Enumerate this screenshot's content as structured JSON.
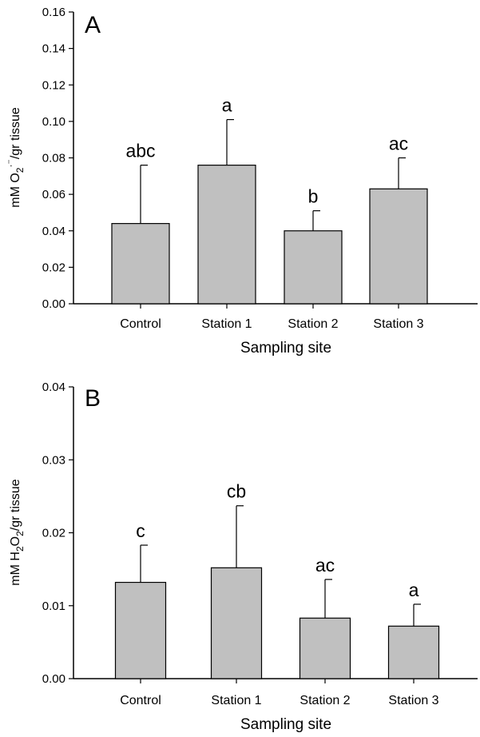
{
  "chart_data": [
    {
      "type": "bar",
      "panel_label": "A",
      "categories": [
        "Control",
        "Station 1",
        "Station 2",
        "Station 3"
      ],
      "values": [
        0.044,
        0.076,
        0.04,
        0.063
      ],
      "errors": [
        0.032,
        0.025,
        0.011,
        0.017
      ],
      "significance": [
        "abc",
        "a",
        "b",
        "ac"
      ],
      "ylabel": "mM O2·⁻/gr tissue",
      "xlabel": "Sampling site",
      "ylim": [
        0,
        0.16
      ],
      "yticks": [
        "0.00",
        "0.02",
        "0.04",
        "0.06",
        "0.08",
        "0.10",
        "0.12",
        "0.14",
        "0.16"
      ],
      "bar_color": "#c0c0c0",
      "grid": false
    },
    {
      "type": "bar",
      "panel_label": "B",
      "categories": [
        "Control",
        "Station 1",
        "Station 2",
        "Station 3"
      ],
      "values": [
        0.0132,
        0.0152,
        0.0083,
        0.0072
      ],
      "errors": [
        0.0051,
        0.0085,
        0.0053,
        0.003
      ],
      "significance": [
        "c",
        "cb",
        "ac",
        "a"
      ],
      "ylabel": "mM H2O2/gr tissue",
      "xlabel": "Sampling site",
      "ylim": [
        0,
        0.04
      ],
      "yticks": [
        "0.00",
        "0.01",
        "0.02",
        "0.03",
        "0.04"
      ],
      "bar_color": "#c0c0c0",
      "grid": false
    }
  ]
}
